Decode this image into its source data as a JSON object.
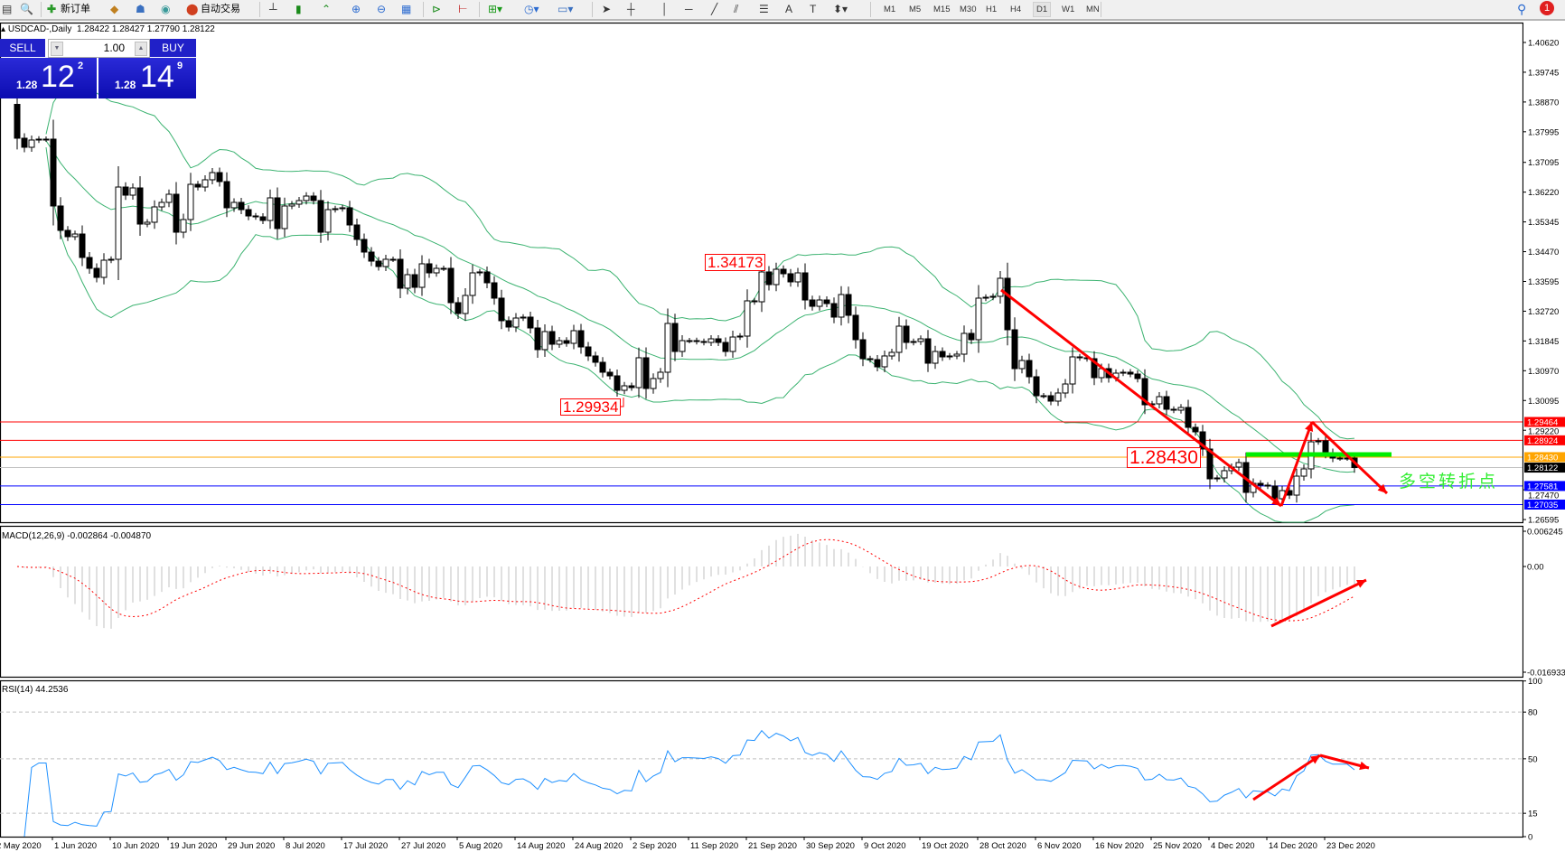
{
  "toolbar": {
    "new_order": "新订单",
    "auto_trading": "自动交易",
    "timeframes": [
      "M1",
      "M5",
      "M15",
      "M30",
      "H1",
      "H4",
      "D1",
      "W1",
      "MN"
    ],
    "active_timeframe": "D1",
    "notification_count": "1"
  },
  "chart": {
    "symbol": "USDCAD-,Daily",
    "ohlc": "1.28422 1.28427 1.27790 1.28122"
  },
  "trade_panel": {
    "sell_label": "SELL",
    "buy_label": "BUY",
    "lot": "1.00",
    "sell_price": {
      "prefix": "1.28",
      "big": "12",
      "sup": "2"
    },
    "buy_price": {
      "prefix": "1.28",
      "big": "14",
      "sup": "9"
    }
  },
  "price_axis": [
    "1.40620",
    "1.39745",
    "1.38870",
    "1.37995",
    "1.37095",
    "1.36220",
    "1.35345",
    "1.34470",
    "1.33595",
    "1.32720",
    "1.31845",
    "1.30970",
    "1.30095",
    "1.29220",
    "1.27470",
    "1.26595"
  ],
  "levels": [
    {
      "price": "1.29464",
      "color": "#ff0000"
    },
    {
      "price": "1.28924",
      "color": "#ff0000"
    },
    {
      "price": "1.28430",
      "color": "#ffa500"
    },
    {
      "price": "1.28122",
      "color": "#000000",
      "line": "#c0c0c0"
    },
    {
      "price": "1.27581",
      "color": "#0000ff"
    },
    {
      "price": "1.27035",
      "color": "#0000ff"
    }
  ],
  "price_labels": {
    "high": "1.34173",
    "low": "1.29934",
    "pivot": "1.28430"
  },
  "annotation": "多空转折点",
  "macd": {
    "header": "MACD(12,26,9) -0.002864 -0.004870",
    "axis": [
      "0.006245",
      "0.00",
      "-0.016933"
    ]
  },
  "rsi": {
    "header": "RSI(14) 44.2536",
    "axis": [
      "100",
      "80",
      "50",
      "15",
      "0"
    ],
    "levels": [
      80,
      50,
      15
    ]
  },
  "dates": [
    "2 May 2020",
    "1 Jun 2020",
    "10 Jun 2020",
    "19 Jun 2020",
    "29 Jun 2020",
    "8 Jul 2020",
    "17 Jul 2020",
    "27 Jul 2020",
    "5 Aug 2020",
    "14 Aug 2020",
    "24 Aug 2020",
    "2 Sep 2020",
    "11 Sep 2020",
    "21 Sep 2020",
    "30 Sep 2020",
    "9 Oct 2020",
    "19 Oct 2020",
    "28 Oct 2020",
    "6 Nov 2020",
    "16 Nov 2020",
    "25 Nov 2020",
    "4 Dec 2020",
    "14 Dec 2020",
    "23 Dec 2020"
  ],
  "colors": {
    "bollinger": "#3cb371",
    "macd_hist": "#c0c0c0",
    "macd_signal": "#ff0000",
    "rsi": "#1e90ff",
    "arrows": "#ff0000",
    "pivot_line": "#00ee00"
  },
  "chart_data": {
    "type": "candlestick",
    "symbol": "USDCAD",
    "timeframe": "D1",
    "first_open": 1.388,
    "closes": [
      1.37805,
      1.37539,
      1.37752,
      1.37778,
      1.37778,
      1.35813,
      1.35096,
      1.3491,
      1.34989,
      1.34299,
      1.3398,
      1.33714,
      1.34219,
      1.34246,
      1.3637,
      1.36131,
      1.36344,
      1.35281,
      1.35335,
      1.35786,
      1.35919,
      1.36158,
      1.35042,
      1.35414,
      1.3645,
      1.3637,
      1.36583,
      1.36795,
      1.3653,
      1.3576,
      1.35919,
      1.35706,
      1.3552,
      1.35494,
      1.35388,
      1.36052,
      1.35149,
      1.35813,
      1.35866,
      1.35972,
      1.36105,
      1.35972,
      1.35042,
      1.35706,
      1.35733,
      1.3576,
      1.35255,
      1.3483,
      1.34458,
      1.34192,
      1.34033,
      1.34246,
      1.34246,
      1.33396,
      1.33794,
      1.33422,
      1.34113,
      1.33847,
      1.3398,
      1.3398,
      1.32971,
      1.32652,
      1.33183,
      1.33847,
      1.33874,
      1.33555,
      1.33104,
      1.3244,
      1.32254,
      1.32519,
      1.32546,
      1.32227,
      1.3159,
      1.32121,
      1.31749,
      1.31855,
      1.31776,
      1.32147,
      1.31669,
      1.31404,
      1.31218,
      1.30926,
      1.30819,
      1.30394,
      1.30527,
      1.30474,
      1.31351,
      1.30448,
      1.3074,
      1.30926,
      1.3236,
      1.31536,
      1.31855,
      1.31855,
      1.31829,
      1.31802,
      1.31908,
      1.31802,
      1.31536,
      1.31961,
      1.31988,
      1.33024,
      1.32997,
      1.33874,
      1.33502,
      1.33953,
      1.33821,
      1.33582,
      1.33847,
      1.3305,
      1.32864,
      1.3305,
      1.32944,
      1.32546,
      1.3321,
      1.32599,
      1.31882,
      1.31324,
      1.31297,
      1.31085,
      1.31404,
      1.3151,
      1.3228,
      1.31802,
      1.31829,
      1.31908,
      1.31191,
      1.31536,
      1.31377,
      1.31404,
      1.31457,
      1.32068,
      1.31882,
      1.33104,
      1.3313,
      1.33157,
      1.33688,
      1.32174,
      1.31032,
      1.31271,
      1.30793,
      1.30235,
      1.30235,
      1.30076,
      1.30315,
      1.3058,
      1.31377,
      1.31351,
      1.31324,
      1.30766,
      1.31032,
      1.30766,
      1.30899,
      1.30926,
      1.30872,
      1.3074,
      1.29969,
      1.29996,
      1.30208,
      1.29837,
      1.2981,
      1.2989,
      1.29305,
      1.29173,
      1.28668,
      1.27792,
      1.27818,
      1.28031,
      1.28137,
      1.2827,
      1.27393,
      1.27659,
      1.27606,
      1.27579,
      1.27207,
      1.27446,
      1.27313,
      1.27871,
      1.28084,
      1.2888,
      1.28907,
      1.28562,
      1.28402,
      1.28402,
      1.28402,
      1.28122
    ]
  }
}
